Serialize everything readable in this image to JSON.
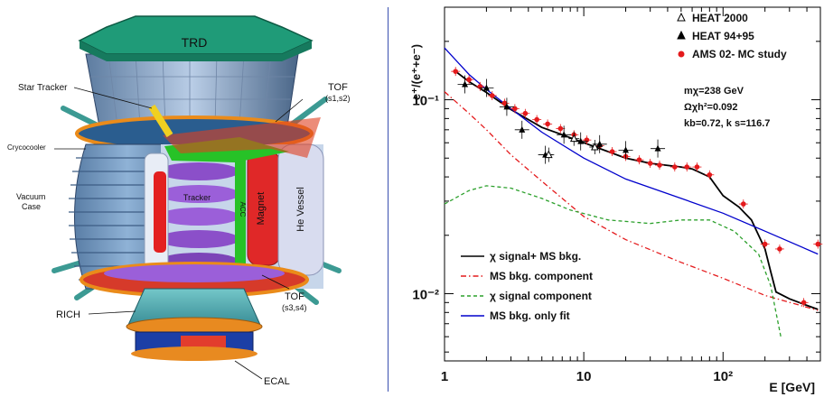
{
  "detector": {
    "labels": {
      "trd": "TRD",
      "star_tracker": "Star Tracker",
      "tof_top": "TOF",
      "tof_top_sub": "(s1,s2)",
      "cryocooler": "Crycocooler",
      "vacuum": "Vacuum",
      "vacuum2": "Case",
      "tracker": "Tracker",
      "acc": "ACC",
      "magnet": "Magnet",
      "he_vessel": "He Vessel",
      "tof_bottom": "TOF",
      "tof_bottom_sub": "(s3,s4)",
      "rich": "RICH",
      "ecal": "ECAL"
    }
  },
  "chart_data": {
    "type": "line",
    "ylabel": "e⁺/(e⁺+e⁻)",
    "xlabel": "E [GeV]",
    "xscale": "log",
    "yscale": "log",
    "xlim": [
      1,
      500
    ],
    "ylim": [
      0.0045,
      0.3
    ],
    "x_ticks": [
      {
        "value": 1,
        "label": "1"
      },
      {
        "value": 10,
        "label": "10"
      },
      {
        "value": 100,
        "label": "10²"
      }
    ],
    "y_ticks": [
      {
        "value": 0.1,
        "label": "10⁻¹"
      },
      {
        "value": 0.01,
        "label": "10⁻²"
      }
    ],
    "legend_top": [
      {
        "name": "HEAT 2000",
        "marker": "open-triangle",
        "color": "#000000"
      },
      {
        "name": "HEAT 94+95",
        "marker": "filled-triangle",
        "color": "#000000"
      },
      {
        "name": "AMS 02- MC study",
        "marker": "dot",
        "color": "#e41a1c"
      }
    ],
    "annotations": [
      "mχ=238 GeV",
      "Ωχh²=0.092",
      "kb=0.72, k s=116.7"
    ],
    "legend_bottom": [
      {
        "name": "χ signal+ MS bkg.",
        "color": "#000000",
        "dash": "solid"
      },
      {
        "name": "MS bkg. component",
        "color": "#e41a1c",
        "dash": "dashdot"
      },
      {
        "name": "χ signal component",
        "color": "#2ca02c",
        "dash": "dashed"
      },
      {
        "name": "MS bkg. only fit",
        "color": "#0000cc",
        "dash": "solid"
      }
    ],
    "series": [
      {
        "name": "χ signal+ MS bkg.",
        "color": "#000000",
        "dash": "solid",
        "points": [
          [
            1.2,
            0.14
          ],
          [
            1.5,
            0.124
          ],
          [
            2,
            0.109
          ],
          [
            3,
            0.089
          ],
          [
            5,
            0.072
          ],
          [
            7,
            0.066
          ],
          [
            10,
            0.06
          ],
          [
            15,
            0.054
          ],
          [
            20,
            0.05
          ],
          [
            30,
            0.047
          ],
          [
            50,
            0.045
          ],
          [
            60,
            0.044
          ],
          [
            80,
            0.04
          ],
          [
            100,
            0.032
          ],
          [
            130,
            0.028
          ],
          [
            160,
            0.024
          ],
          [
            200,
            0.017
          ],
          [
            220,
            0.013
          ],
          [
            240,
            0.0102
          ],
          [
            300,
            0.0094
          ],
          [
            400,
            0.0087
          ],
          [
            480,
            0.0083
          ]
        ]
      },
      {
        "name": "MS bkg. component",
        "color": "#e41a1c",
        "dash": "dashdot",
        "points": [
          [
            1,
            0.11
          ],
          [
            1.5,
            0.085
          ],
          [
            2,
            0.07
          ],
          [
            3,
            0.052
          ],
          [
            5,
            0.038
          ],
          [
            10,
            0.025
          ],
          [
            20,
            0.019
          ],
          [
            50,
            0.0145
          ],
          [
            100,
            0.012
          ],
          [
            200,
            0.0098
          ],
          [
            480,
            0.0082
          ]
        ]
      },
      {
        "name": "χ signal component",
        "color": "#2ca02c",
        "dash": "dashed",
        "points": [
          [
            1,
            0.029
          ],
          [
            1.5,
            0.034
          ],
          [
            2,
            0.036
          ],
          [
            3,
            0.035
          ],
          [
            5,
            0.031
          ],
          [
            8,
            0.027
          ],
          [
            15,
            0.024
          ],
          [
            30,
            0.023
          ],
          [
            50,
            0.024
          ],
          [
            80,
            0.024
          ],
          [
            120,
            0.021
          ],
          [
            180,
            0.016
          ],
          [
            220,
            0.011
          ],
          [
            260,
            0.006
          ],
          [
            290,
            0.004
          ]
        ]
      },
      {
        "name": "MS bkg. only fit",
        "color": "#0000cc",
        "dash": "solid",
        "points": [
          [
            1,
            0.185
          ],
          [
            1.5,
            0.135
          ],
          [
            2,
            0.113
          ],
          [
            3,
            0.09
          ],
          [
            5,
            0.068
          ],
          [
            10,
            0.05
          ],
          [
            20,
            0.039
          ],
          [
            50,
            0.031
          ],
          [
            100,
            0.026
          ],
          [
            200,
            0.021
          ],
          [
            480,
            0.016
          ]
        ]
      }
    ],
    "data_ams": [
      [
        1.2,
        0.14
      ],
      [
        1.5,
        0.127
      ],
      [
        1.8,
        0.117
      ],
      [
        2.2,
        0.105
      ],
      [
        2.7,
        0.096
      ],
      [
        3.2,
        0.09
      ],
      [
        3.8,
        0.085
      ],
      [
        4.6,
        0.079
      ],
      [
        5.5,
        0.075
      ],
      [
        6.8,
        0.071
      ],
      [
        8.5,
        0.066
      ],
      [
        10.5,
        0.062
      ],
      [
        13,
        0.058
      ],
      [
        16,
        0.054
      ],
      [
        20,
        0.051
      ],
      [
        25,
        0.049
      ],
      [
        30,
        0.047
      ],
      [
        35,
        0.046
      ],
      [
        45,
        0.045
      ],
      [
        55,
        0.045
      ],
      [
        65,
        0.045
      ],
      [
        80,
        0.041
      ],
      [
        140,
        0.029
      ],
      [
        200,
        0.018
      ],
      [
        255,
        0.017
      ],
      [
        380,
        0.009
      ],
      [
        480,
        0.018
      ]
    ],
    "data_heat2000": [
      [
        5.6,
        0.052
      ],
      [
        8.5,
        0.063
      ],
      [
        12,
        0.057
      ]
    ],
    "data_heat9495": [
      [
        1.4,
        0.12
      ],
      [
        2.0,
        0.115
      ],
      [
        2.8,
        0.092
      ],
      [
        3.6,
        0.07
      ],
      [
        5.3,
        0.052
      ],
      [
        7.2,
        0.066
      ],
      [
        9.5,
        0.061
      ],
      [
        13,
        0.059
      ],
      [
        20,
        0.055
      ],
      [
        34,
        0.056
      ]
    ]
  }
}
